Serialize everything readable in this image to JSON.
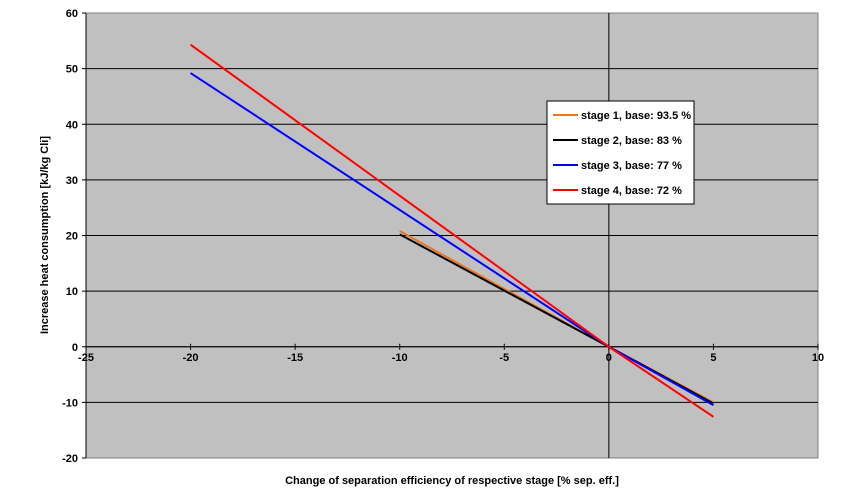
{
  "chart_data": {
    "type": "line",
    "title": "",
    "xlabel": "Change of separation efficiency of respective stage [% sep. eff.]",
    "ylabel": "Increase heat consumption [kJ/kg Cli]",
    "xlim": [
      -25,
      10
    ],
    "ylim": [
      -20,
      60
    ],
    "x_ticks": [
      -25,
      -20,
      -15,
      -10,
      -5,
      0,
      5,
      10
    ],
    "y_ticks": [
      -20,
      -10,
      0,
      10,
      20,
      30,
      40,
      50,
      60
    ],
    "grid": "horizontal",
    "legend_position": "right",
    "series": [
      {
        "name": "stage 1, base: 93.5 %",
        "color": "#e87722",
        "x": [
          -10,
          0,
          5
        ],
        "y": [
          20.8,
          0,
          -10.0
        ]
      },
      {
        "name": "stage 2, base: 83 %",
        "color": "#000000",
        "x": [
          -10,
          0,
          5
        ],
        "y": [
          20.2,
          0,
          -10.2
        ]
      },
      {
        "name": "stage 3, base: 77 %",
        "color": "#0000ff",
        "x": [
          -20,
          0,
          5
        ],
        "y": [
          49.2,
          0,
          -10.5
        ]
      },
      {
        "name": "stage 4, base: 72 %",
        "color": "#ff0000",
        "x": [
          -20,
          0,
          5
        ],
        "y": [
          54.3,
          0,
          -12.6
        ]
      }
    ]
  }
}
